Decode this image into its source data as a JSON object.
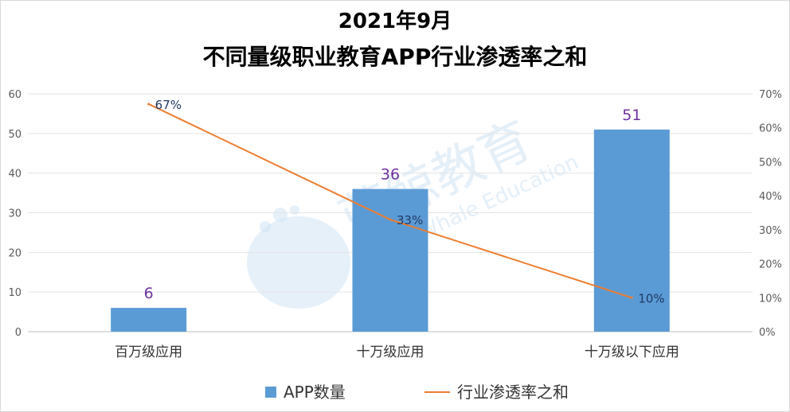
{
  "title": {
    "line1": "2021年9月",
    "line2": "不同量级职业教育APP行业渗透率之和"
  },
  "watermark": {
    "text_cn": "蓝鲸教育",
    "text_en": "Blue Whale Education"
  },
  "chart_data": {
    "type": "bar",
    "categories": [
      "百万级应用",
      "十万级应用",
      "十万级以下应用"
    ],
    "series": [
      {
        "name": "APP数量",
        "type": "bar",
        "axis": "left",
        "values": [
          6,
          36,
          51
        ],
        "labels": [
          "6",
          "36",
          "51"
        ],
        "color": "#5b9bd5"
      },
      {
        "name": "行业渗透率之和",
        "type": "line",
        "axis": "right",
        "values": [
          67,
          33,
          10
        ],
        "labels": [
          "67%",
          "33%",
          "10%"
        ],
        "color": "#ed7d31"
      }
    ],
    "y_left": {
      "min": 0,
      "max": 60,
      "ticks": [
        "0",
        "10",
        "20",
        "30",
        "40",
        "50",
        "60"
      ]
    },
    "y_right": {
      "min": 0,
      "max": 70,
      "ticks": [
        "0%",
        "10%",
        "20%",
        "30%",
        "40%",
        "50%",
        "60%",
        "70%"
      ]
    },
    "grid": true,
    "legend_position": "bottom"
  }
}
